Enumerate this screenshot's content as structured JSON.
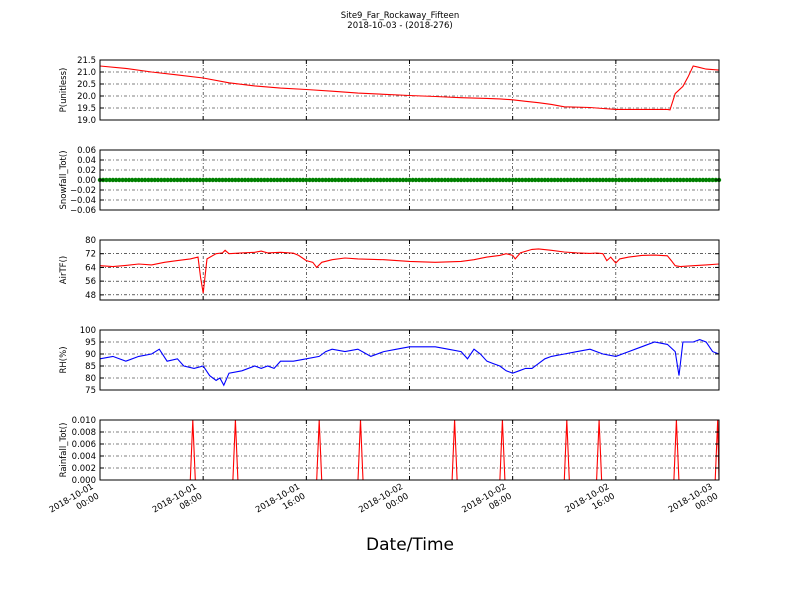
{
  "chart_data": {
    "type": "line",
    "title": "Site9_Far_Rockaway_Fifteen",
    "subtitle": "2018-10-03 - (2018-276)",
    "xlabel": "Date/Time",
    "x_ticks": [
      {
        "line1": "2018-10-01",
        "line2": "00:00"
      },
      {
        "line1": "2018-10-01",
        "line2": "08:00"
      },
      {
        "line1": "2018-10-01",
        "line2": "16:00"
      },
      {
        "line1": "2018-10-02",
        "line2": "00:00"
      },
      {
        "line1": "2018-10-02",
        "line2": "08:00"
      },
      {
        "line1": "2018-10-02",
        "line2": "16:00"
      },
      {
        "line1": "2018-10-03",
        "line2": "00:00"
      }
    ],
    "x_range_hours": [
      0,
      48
    ],
    "grid": true,
    "panels": [
      {
        "ylabel": "P(unitless)",
        "ylim": [
          19.0,
          21.5
        ],
        "yticks": [
          "19.0",
          "19.5",
          "20.0",
          "20.5",
          "21.0",
          "21.5"
        ],
        "ytick_values": [
          19.0,
          19.5,
          20.0,
          20.5,
          21.0,
          21.5
        ],
        "color": "#ff0000",
        "style": "line",
        "points": [
          [
            0,
            21.25
          ],
          [
            2,
            21.15
          ],
          [
            4,
            21.0
          ],
          [
            6,
            20.88
          ],
          [
            8,
            20.75
          ],
          [
            10,
            20.55
          ],
          [
            12,
            20.42
          ],
          [
            14,
            20.33
          ],
          [
            16,
            20.27
          ],
          [
            18,
            20.2
          ],
          [
            20,
            20.12
          ],
          [
            22,
            20.07
          ],
          [
            24,
            20.02
          ],
          [
            26,
            19.98
          ],
          [
            28,
            19.93
          ],
          [
            30,
            19.9
          ],
          [
            31,
            19.88
          ],
          [
            32,
            19.84
          ],
          [
            33,
            19.78
          ],
          [
            34,
            19.72
          ],
          [
            35,
            19.65
          ],
          [
            36,
            19.55
          ],
          [
            38,
            19.52
          ],
          [
            39,
            19.48
          ],
          [
            40,
            19.44
          ],
          [
            42,
            19.44
          ],
          [
            44,
            19.44
          ],
          [
            44.2,
            19.42
          ],
          [
            44.6,
            20.1
          ],
          [
            45.2,
            20.4
          ],
          [
            45.6,
            20.8
          ],
          [
            46,
            21.25
          ],
          [
            46.4,
            21.2
          ],
          [
            47,
            21.12
          ],
          [
            48,
            21.08
          ]
        ]
      },
      {
        "ylabel": "Snowfall_Tot()",
        "ylim": [
          -0.06,
          0.06
        ],
        "yticks": [
          "0.06",
          "0.04",
          "0.02",
          "0.00",
          "−0.02",
          "−0.04",
          "−0.06"
        ],
        "ytick_values": [
          0.06,
          0.04,
          0.02,
          0.0,
          -0.02,
          -0.04,
          -0.06
        ],
        "color": "#008000",
        "style": "markers",
        "points": [
          [
            0,
            0
          ],
          [
            48,
            0
          ]
        ]
      },
      {
        "ylabel": "AirTF()",
        "ylim": [
          45,
          80
        ],
        "yticks": [
          "80",
          "72",
          "64",
          "56",
          "48"
        ],
        "ytick_values": [
          80,
          72,
          64,
          56,
          48
        ],
        "color": "#ff0000",
        "style": "line",
        "points": [
          [
            0,
            65
          ],
          [
            1,
            64.5
          ],
          [
            2,
            65.2
          ],
          [
            3,
            66
          ],
          [
            4,
            65.5
          ],
          [
            5,
            67
          ],
          [
            6,
            68
          ],
          [
            7,
            69
          ],
          [
            7.6,
            70
          ],
          [
            7.8,
            58
          ],
          [
            8,
            49
          ],
          [
            8.3,
            69
          ],
          [
            9,
            72
          ],
          [
            9.5,
            72.5
          ],
          [
            9.7,
            74
          ],
          [
            10,
            72
          ],
          [
            11,
            72.5
          ],
          [
            12,
            72.8
          ],
          [
            12.5,
            73.5
          ],
          [
            13,
            72.5
          ],
          [
            14,
            72.8
          ],
          [
            15,
            72.3
          ],
          [
            15.4,
            71
          ],
          [
            16,
            68
          ],
          [
            16.5,
            67
          ],
          [
            16.8,
            64
          ],
          [
            17.2,
            67
          ],
          [
            18,
            68.5
          ],
          [
            19,
            69.5
          ],
          [
            20,
            69
          ],
          [
            22,
            68.5
          ],
          [
            24,
            67.5
          ],
          [
            26,
            67
          ],
          [
            28,
            67.5
          ],
          [
            29,
            68.5
          ],
          [
            30,
            70
          ],
          [
            31,
            71
          ],
          [
            31.5,
            72
          ],
          [
            32,
            71
          ],
          [
            32.2,
            69
          ],
          [
            32.6,
            72.5
          ],
          [
            33.5,
            74.5
          ],
          [
            34,
            74.8
          ],
          [
            35,
            74
          ],
          [
            36,
            73
          ],
          [
            37,
            72.5
          ],
          [
            38,
            72.2
          ],
          [
            38.5,
            72.4
          ],
          [
            39,
            72
          ],
          [
            39.3,
            68
          ],
          [
            39.6,
            70
          ],
          [
            40,
            66.5
          ],
          [
            40.3,
            69
          ],
          [
            41,
            70
          ],
          [
            42,
            71
          ],
          [
            43,
            71.2
          ],
          [
            44,
            70.8
          ],
          [
            44.3,
            68
          ],
          [
            44.6,
            65
          ],
          [
            45,
            64.5
          ],
          [
            46,
            65
          ],
          [
            47,
            65.5
          ],
          [
            48,
            66
          ]
        ]
      },
      {
        "ylabel": "RH(%)",
        "ylim": [
          75,
          100
        ],
        "yticks": [
          "100",
          "95",
          "90",
          "85",
          "80",
          "75"
        ],
        "ytick_values": [
          100,
          95,
          90,
          85,
          80,
          75
        ],
        "color": "#0000ff",
        "style": "line",
        "points": [
          [
            0,
            88
          ],
          [
            1,
            89
          ],
          [
            2,
            87
          ],
          [
            3,
            89
          ],
          [
            4,
            90
          ],
          [
            4.6,
            92
          ],
          [
            5.2,
            87
          ],
          [
            6,
            88
          ],
          [
            6.5,
            85
          ],
          [
            7.3,
            84
          ],
          [
            8,
            85
          ],
          [
            8.5,
            81
          ],
          [
            9,
            79
          ],
          [
            9.3,
            80
          ],
          [
            9.6,
            77
          ],
          [
            10,
            82
          ],
          [
            11,
            83
          ],
          [
            12,
            85
          ],
          [
            12.5,
            84
          ],
          [
            13,
            85
          ],
          [
            13.5,
            84
          ],
          [
            14,
            87
          ],
          [
            15,
            87
          ],
          [
            16,
            88
          ],
          [
            17,
            89
          ],
          [
            17.5,
            91
          ],
          [
            18,
            92
          ],
          [
            19,
            91
          ],
          [
            20,
            92
          ],
          [
            21,
            89
          ],
          [
            22,
            91
          ],
          [
            23,
            92
          ],
          [
            24,
            93
          ],
          [
            25,
            93
          ],
          [
            26,
            93
          ],
          [
            27,
            92
          ],
          [
            28,
            91
          ],
          [
            28.5,
            88
          ],
          [
            29,
            92
          ],
          [
            29.5,
            90
          ],
          [
            30,
            87
          ],
          [
            30.5,
            86
          ],
          [
            31,
            85
          ],
          [
            31.5,
            83
          ],
          [
            32,
            82
          ],
          [
            32.5,
            83
          ],
          [
            33,
            84
          ],
          [
            33.5,
            84
          ],
          [
            34,
            86
          ],
          [
            34.5,
            88
          ],
          [
            35,
            89
          ],
          [
            36,
            90
          ],
          [
            37,
            91
          ],
          [
            38,
            92
          ],
          [
            39,
            90
          ],
          [
            40,
            89
          ],
          [
            41,
            91
          ],
          [
            42,
            93
          ],
          [
            43,
            95
          ],
          [
            44,
            94
          ],
          [
            44.6,
            91
          ],
          [
            44.9,
            81
          ],
          [
            45.2,
            95
          ],
          [
            46,
            95
          ],
          [
            46.5,
            96
          ],
          [
            47,
            95
          ],
          [
            47.5,
            91
          ],
          [
            48,
            90
          ]
        ]
      },
      {
        "ylabel": "Rainfall_Tot()",
        "ylim": [
          0.0,
          0.01
        ],
        "yticks": [
          "0.010",
          "0.008",
          "0.006",
          "0.004",
          "0.002",
          "0.000"
        ],
        "ytick_values": [
          0.01,
          0.008,
          0.006,
          0.004,
          0.002,
          0.0
        ],
        "color": "#ff0000",
        "style": "spikes",
        "spike_value": 0.01,
        "spike_times": [
          7.2,
          10.5,
          17.0,
          20.2,
          27.5,
          31.2,
          36.2,
          38.7,
          44.7,
          47.9
        ]
      }
    ]
  }
}
